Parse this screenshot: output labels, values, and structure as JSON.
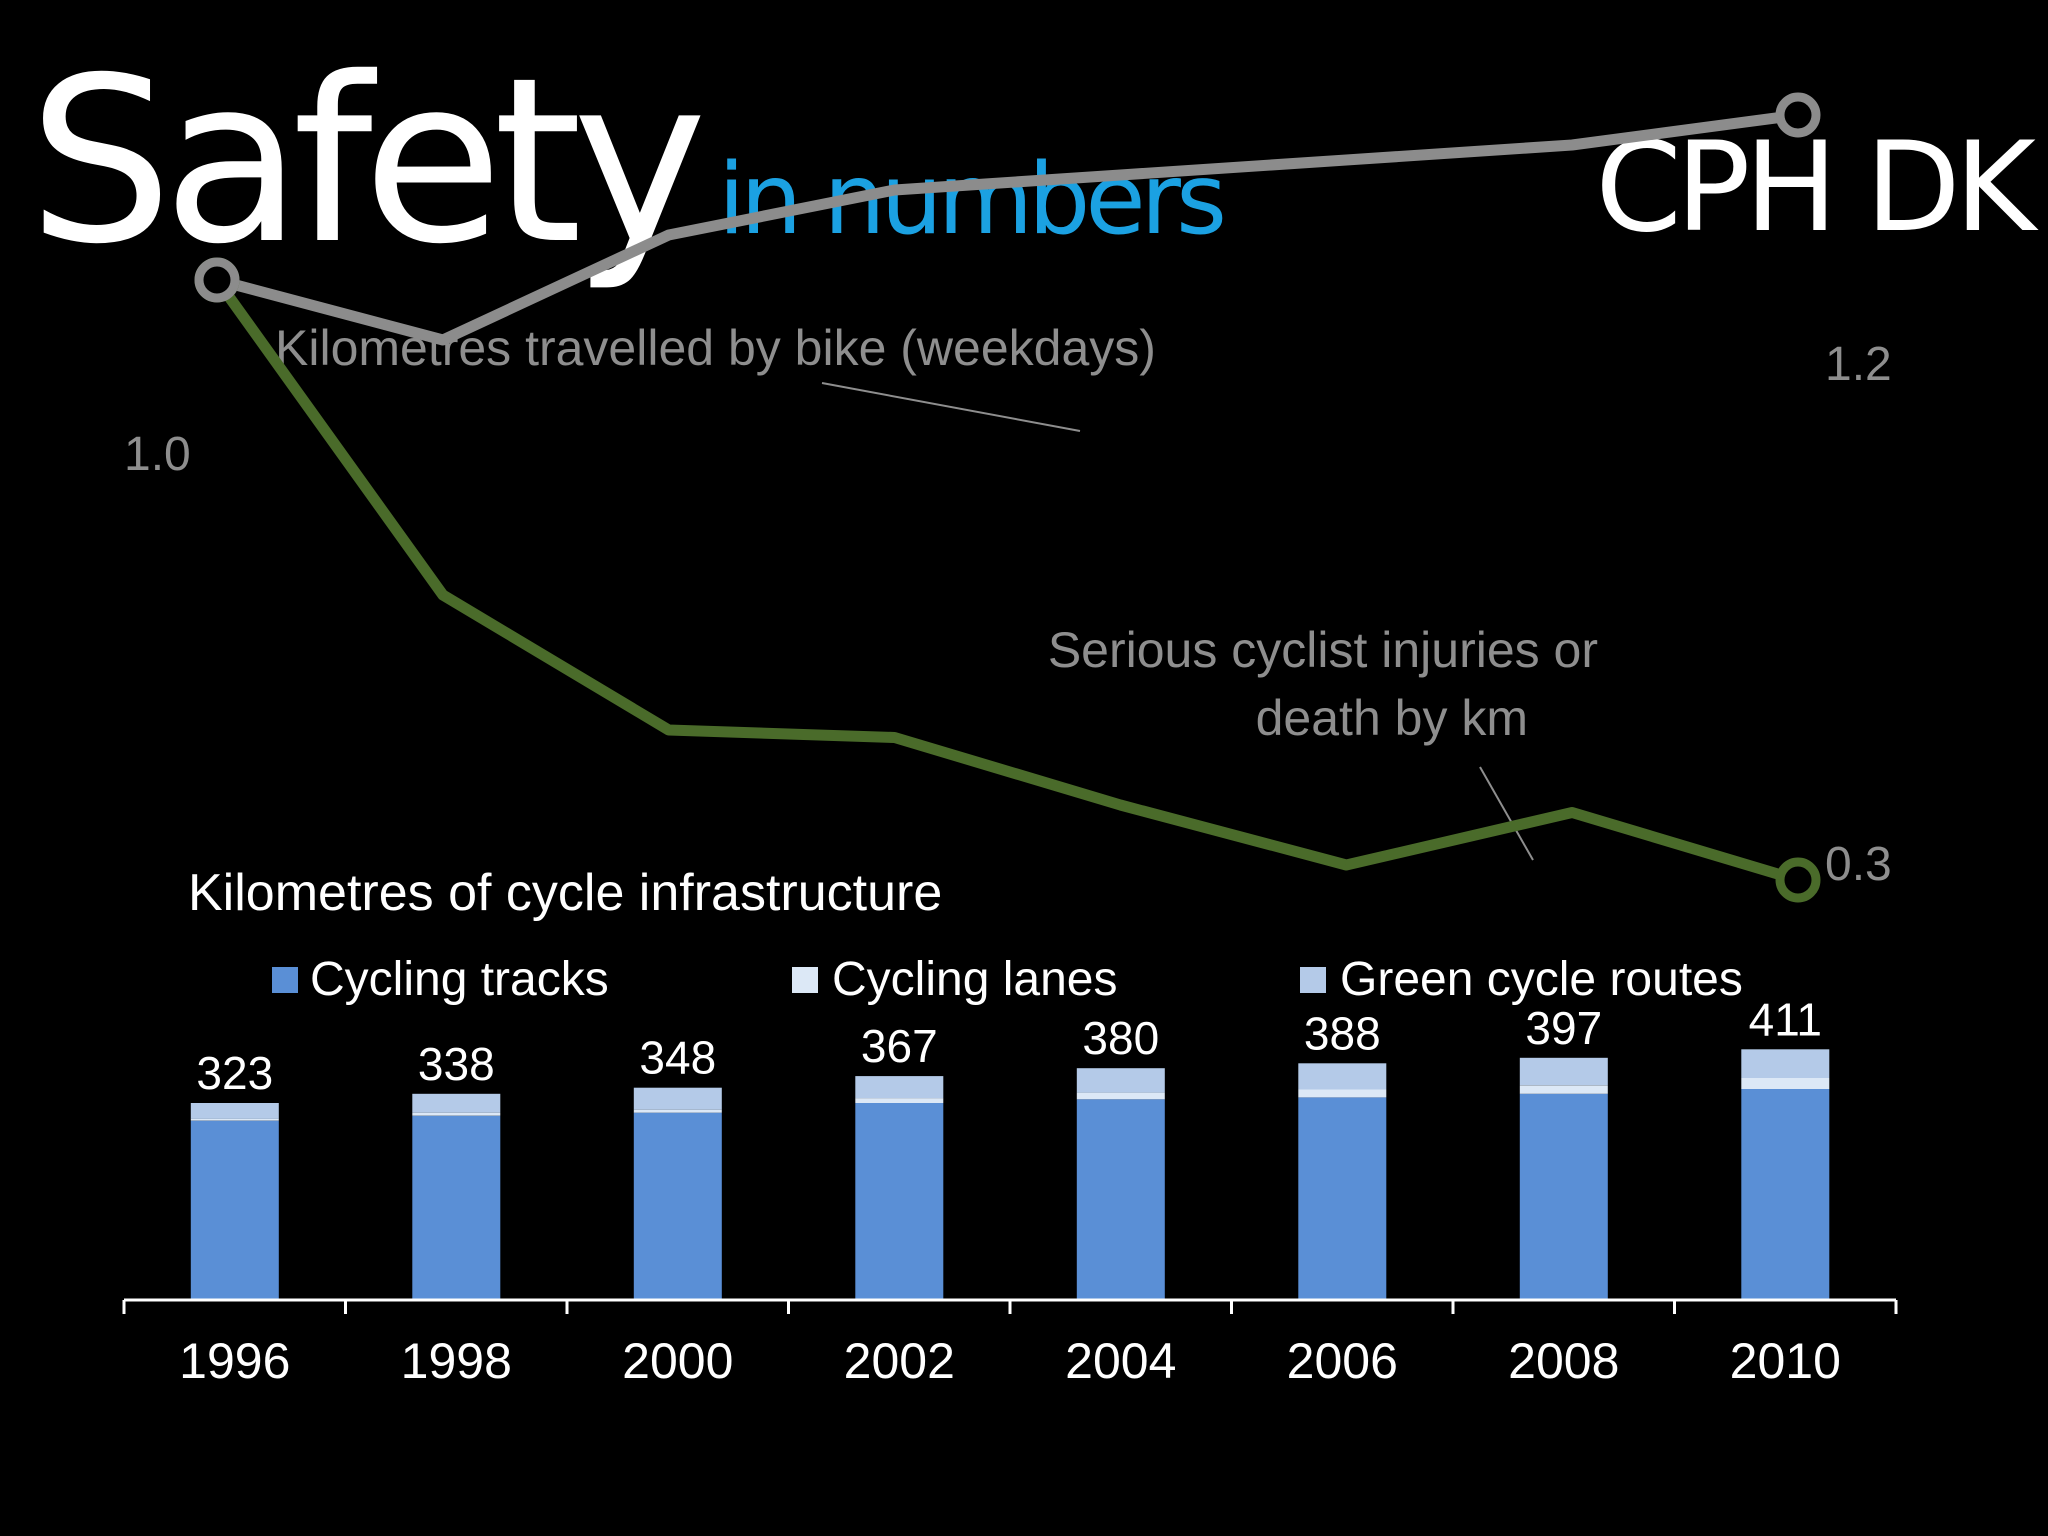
{
  "header": {
    "title_big": "Safety",
    "title_small": "in numbers",
    "location": "CPH DK"
  },
  "colors": {
    "background": "#000000",
    "title_white": "#ffffff",
    "title_accent": "#1ba1e2",
    "km_line": "#8c8c8c",
    "injury_line": "#4a6b2a",
    "label_grey": "#8e8e8e",
    "cycling_tracks": "#5a8fd6",
    "cycling_lanes": "#dce8f6",
    "green_routes": "#b4cae8"
  },
  "chart_data": [
    {
      "type": "line",
      "x": [
        1996,
        1998,
        2000,
        2002,
        2004,
        2006,
        2008,
        2010
      ],
      "series": [
        {
          "name": "Kilomètres travelled by bike (weekdays)",
          "values": [
            1.0,
            0.96,
            1.03,
            1.06,
            1.07,
            1.08,
            1.09,
            1.11
          ]
        },
        {
          "name": "Serious cyclist injuries or death by km",
          "values": [
            1.0,
            0.79,
            0.7,
            0.695,
            0.65,
            0.61,
            0.645,
            0.6
          ]
        }
      ],
      "annotations": [
        "1.0",
        "1.2",
        "0.3"
      ],
      "label_lines": {
        "km": "Kilomètres travelled by bike (weekdays)",
        "injury_1": "Serious cyclist injuries or",
        "injury_2": "death by km"
      }
    },
    {
      "type": "bar",
      "stacked": true,
      "title": "Kilometres of cycle infrastructure",
      "categories": [
        "1996",
        "1998",
        "2000",
        "2002",
        "2004",
        "2006",
        "2008",
        "2010"
      ],
      "totals": [
        323,
        338,
        348,
        367,
        380,
        388,
        397,
        411
      ],
      "series": [
        {
          "name": "Cycling tracks",
          "values": [
            294,
            302,
            307,
            323,
            329,
            332,
            338,
            346
          ]
        },
        {
          "name": "Cycling lanes",
          "values": [
            3,
            5,
            5,
            8,
            11,
            13,
            14,
            18
          ]
        },
        {
          "name": "Green cycle routes",
          "values": [
            26,
            31,
            36,
            36,
            40,
            43,
            45,
            47
          ]
        }
      ],
      "legend_position": "top",
      "grid": false
    }
  ]
}
